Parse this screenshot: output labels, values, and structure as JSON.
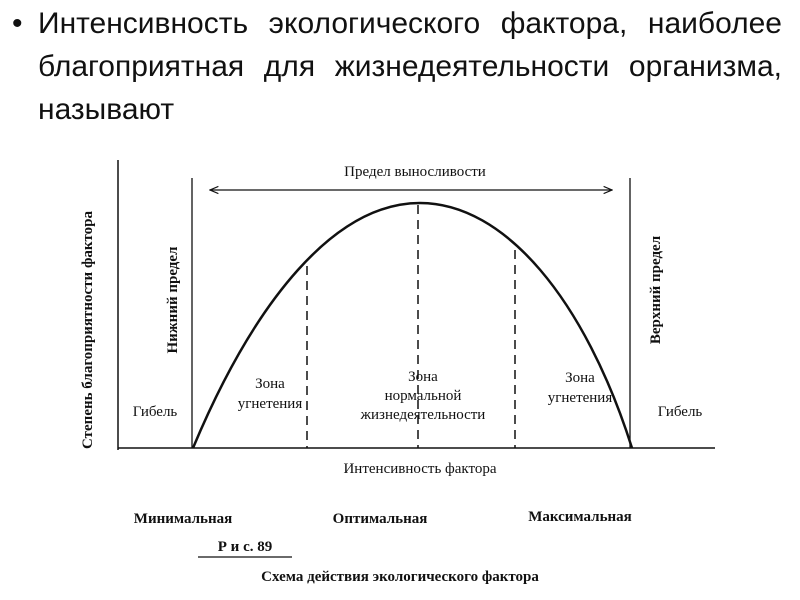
{
  "slide": {
    "bullet": "Интенсивность экологического фактора, наиболее благоприятная для жизнедеятельности организма, называют"
  },
  "figure": {
    "y_axis_label": "Степень благоприятности фактора",
    "tolerance_limit": "Предел выносливости",
    "lower_limit": "Нижний предел",
    "upper_limit": "Верхний предел",
    "death_left": "Гибель",
    "death_right": "Гибель",
    "zone_left": [
      "Зона",
      "угнетения"
    ],
    "zone_center": [
      "Зона",
      "нормальной",
      "жизнедеятельности"
    ],
    "zone_right": [
      "Зона",
      "угнетения"
    ],
    "x_axis_label": "Интенсивность фактора",
    "minimum": "Минимальная",
    "optimum": "Оптимальная",
    "maximum": "Максимальная",
    "fig_number": "Р и с. 89",
    "caption": "Схема действия экологического фактора"
  }
}
